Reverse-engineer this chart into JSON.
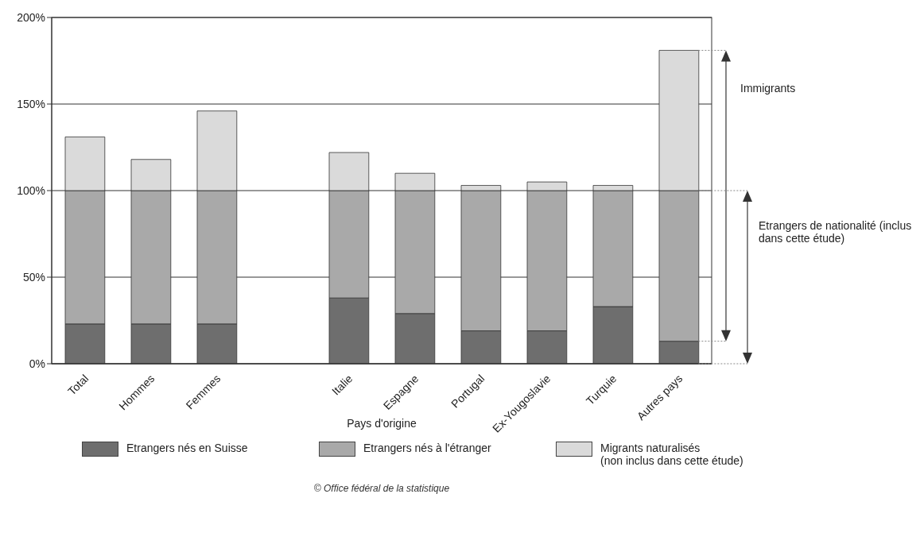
{
  "chart_data": {
    "type": "bar",
    "stacked": true,
    "categories": [
      "Total",
      "Hommes",
      "Femmes",
      null,
      "Italie",
      "Espagne",
      "Portugal",
      "Ex-Yougoslavie",
      "Turquie",
      "Autres pays"
    ],
    "series": [
      {
        "name": "Etrangers nés en Suisse",
        "color": "#6e6e6e",
        "values": [
          23,
          23,
          23,
          null,
          38,
          29,
          19,
          19,
          33,
          13
        ]
      },
      {
        "name": "Etrangers nés à l'étranger",
        "color": "#a9a9a9",
        "values": [
          77,
          77,
          77,
          null,
          62,
          71,
          81,
          81,
          67,
          87
        ]
      },
      {
        "name": "Migrants naturalisés (non inclus dans cette étude)",
        "color": "#dadada",
        "values": [
          31,
          18,
          46,
          null,
          22,
          10,
          3,
          5,
          3,
          81
        ]
      }
    ],
    "xlabel": "Pays d'origine",
    "ylim": [
      0,
      200
    ],
    "yticks": [
      {
        "value": 0,
        "label": "0%"
      },
      {
        "value": 50,
        "label": "50%"
      },
      {
        "value": 100,
        "label": "100%"
      },
      {
        "value": 150,
        "label": "150%"
      },
      {
        "value": 200,
        "label": "200%"
      }
    ],
    "grid": "y",
    "legend": "bottom",
    "annotations": [
      "Immigrants",
      "Etrangers de nationalité (inclus dans cette étude)",
      "© Office fédéral de la statistique"
    ]
  }
}
